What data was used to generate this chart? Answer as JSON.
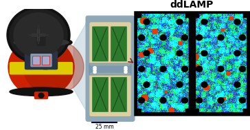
{
  "title": "ddLAMP",
  "scale_bar_label": "25 mm",
  "bg_color": "#ffffff",
  "title_fontsize": 10,
  "title_fontweight": "bold",
  "chip_bg": "#8fa8b8",
  "chip_chamber_bg": "#ddd0a0",
  "chip_green": "#2d7a2d",
  "panel_right_bg": "#000000",
  "red_border": "#cc0000",
  "scale_bar_color": "#000033",
  "connector_color": "#b8ccd8",
  "centrifuge_red": "#cc2200",
  "centrifuge_dark_red": "#991a00",
  "centrifuge_lid": "#1a1a1a",
  "centrifuge_lid_inner": "#2a2a2a",
  "centrifuge_yellow_band": "#ddcc00",
  "centrifuge_rotor_dark": "#444444",
  "arrow_color": "#8b1a1a"
}
